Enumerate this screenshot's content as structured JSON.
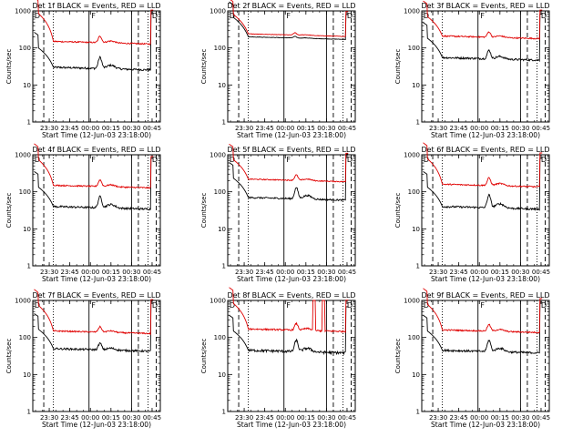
{
  "colors": {
    "events": "#000000",
    "lld": "#e00000"
  },
  "chart_data": [
    {
      "type": "line",
      "title": "Det 1f BLACK = Events, RED = LLD",
      "xlabel": "Start Time (12-Jun-03 23:18:00)",
      "ylabel": "Counts/sec",
      "yscale": "log",
      "ylim": [
        1,
        1000
      ],
      "xlim": [
        "23:18",
        "00:51"
      ],
      "xticks": [
        "23:30",
        "23:45",
        "00:00",
        "00:15",
        "00:30",
        "00:45"
      ],
      "yticks": [
        "1",
        "10",
        "100",
        "1000"
      ],
      "flags": [
        "D",
        "F",
        "D"
      ],
      "markers": [
        {
          "style": "dashed",
          "x": "23:26"
        },
        {
          "style": "dotted",
          "x": "23:33"
        },
        {
          "style": "solid",
          "x": "23:59"
        },
        {
          "style": "solid",
          "x": "00:30"
        },
        {
          "style": "dashed",
          "x": "00:35"
        },
        {
          "style": "dotted",
          "x": "00:42"
        },
        {
          "style": "dashed",
          "x": "00:48"
        }
      ],
      "series": [
        {
          "name": "Events",
          "base": 30,
          "peakAt": "00:07",
          "peak": 2.0,
          "startHigh": 4,
          "endHigh": 30,
          "noise": 0.06
        },
        {
          "name": "LLD",
          "base": 150,
          "peakAt": "00:07",
          "peak": 1.5,
          "startHigh": 7,
          "endHigh": 7,
          "noise": 0.04
        }
      ]
    },
    {
      "type": "line",
      "title": "Det 2f BLACK = Events, RED = LLD",
      "xlabel": "Start Time (12-Jun-03 23:18:00)",
      "ylabel": "Counts/sec",
      "yscale": "log",
      "ylim": [
        1,
        1000
      ],
      "xlim": [
        "23:18",
        "00:51"
      ],
      "xticks": [
        "23:30",
        "23:45",
        "00:00",
        "00:15",
        "00:30",
        "00:45"
      ],
      "yticks": [
        "1",
        "10",
        "100",
        "1000"
      ],
      "flags": [
        "D",
        "F",
        "D"
      ],
      "markers": [
        {
          "style": "dashed",
          "x": "23:26"
        },
        {
          "style": "dotted",
          "x": "23:33"
        },
        {
          "style": "solid",
          "x": "23:59"
        },
        {
          "style": "solid",
          "x": "00:30"
        },
        {
          "style": "dashed",
          "x": "00:35"
        },
        {
          "style": "dotted",
          "x": "00:42"
        },
        {
          "style": "dashed",
          "x": "00:48"
        }
      ],
      "series": [
        {
          "name": "Events",
          "base": 200,
          "peakAt": "00:07",
          "peak": 1.1,
          "startHigh": 4,
          "endHigh": 4,
          "noise": 0.015
        },
        {
          "name": "LLD",
          "base": 240,
          "peakAt": "00:07",
          "peak": 1.15,
          "startHigh": 4,
          "endHigh": 4,
          "noise": 0.015
        }
      ]
    },
    {
      "type": "line",
      "title": "Det 3f BLACK = Events, RED = LLD",
      "xlabel": "Start Time (12-Jun-03 23:18:00)",
      "ylabel": "Counts/sec",
      "yscale": "log",
      "ylim": [
        1,
        1000
      ],
      "xlim": [
        "23:18",
        "00:51"
      ],
      "xticks": [
        "23:30",
        "23:45",
        "00:00",
        "00:15",
        "00:30",
        "00:45"
      ],
      "yticks": [
        "1",
        "10",
        "100",
        "1000"
      ],
      "flags": [
        "D",
        "F",
        "D"
      ],
      "markers": [
        {
          "style": "dashed",
          "x": "23:26"
        },
        {
          "style": "dotted",
          "x": "23:33"
        },
        {
          "style": "solid",
          "x": "23:59"
        },
        {
          "style": "solid",
          "x": "00:30"
        },
        {
          "style": "dashed",
          "x": "00:35"
        },
        {
          "style": "dotted",
          "x": "00:42"
        },
        {
          "style": "dashed",
          "x": "00:48"
        }
      ],
      "series": [
        {
          "name": "Events",
          "base": 55,
          "peakAt": "00:07",
          "peak": 1.7,
          "startHigh": 4,
          "endHigh": 15,
          "noise": 0.06
        },
        {
          "name": "LLD",
          "base": 210,
          "peakAt": "00:07",
          "peak": 1.4,
          "startHigh": 4,
          "endHigh": 5,
          "noise": 0.04
        }
      ]
    },
    {
      "type": "line",
      "title": "Det 4f BLACK = Events, RED = LLD",
      "xlabel": "Start Time (12-Jun-03 23:18:00)",
      "ylabel": "Counts/sec",
      "yscale": "log",
      "ylim": [
        1,
        1000
      ],
      "xlim": [
        "23:18",
        "00:51"
      ],
      "xticks": [
        "23:30",
        "23:45",
        "00:00",
        "00:15",
        "00:30",
        "00:45"
      ],
      "yticks": [
        "1",
        "10",
        "100",
        "1000"
      ],
      "flags": [
        "D",
        "F",
        "D"
      ],
      "markers": [
        {
          "style": "dashed",
          "x": "23:26"
        },
        {
          "style": "dotted",
          "x": "23:33"
        },
        {
          "style": "solid",
          "x": "23:59"
        },
        {
          "style": "solid",
          "x": "00:30"
        },
        {
          "style": "dashed",
          "x": "00:35"
        },
        {
          "style": "dotted",
          "x": "00:42"
        },
        {
          "style": "dashed",
          "x": "00:48"
        }
      ],
      "series": [
        {
          "name": "Events",
          "base": 40,
          "peakAt": "00:07",
          "peak": 2.0,
          "startHigh": 4,
          "endHigh": 20,
          "noise": 0.06
        },
        {
          "name": "LLD",
          "base": 150,
          "peakAt": "00:07",
          "peak": 1.5,
          "startHigh": 6,
          "endHigh": 6,
          "noise": 0.04
        }
      ]
    },
    {
      "type": "line",
      "title": "Det 5f BLACK = Events, RED = LLD",
      "xlabel": "Start Time (12-Jun-03 23:18:00)",
      "ylabel": "Counts/sec",
      "yscale": "log",
      "ylim": [
        1,
        1000
      ],
      "xlim": [
        "23:18",
        "00:51"
      ],
      "xticks": [
        "23:30",
        "23:45",
        "00:00",
        "00:15",
        "00:30",
        "00:45"
      ],
      "yticks": [
        "1",
        "10",
        "100",
        "1000"
      ],
      "flags": [
        "D",
        "F",
        "D"
      ],
      "markers": [
        {
          "style": "dashed",
          "x": "23:26"
        },
        {
          "style": "dotted",
          "x": "23:33"
        },
        {
          "style": "solid",
          "x": "23:59"
        },
        {
          "style": "solid",
          "x": "00:30"
        },
        {
          "style": "dashed",
          "x": "00:35"
        },
        {
          "style": "dotted",
          "x": "00:42"
        },
        {
          "style": "dashed",
          "x": "00:48"
        }
      ],
      "series": [
        {
          "name": "Events",
          "base": 70,
          "peakAt": "00:08",
          "peak": 2.0,
          "startHigh": 4,
          "endHigh": 15,
          "noise": 0.05
        },
        {
          "name": "LLD",
          "base": 220,
          "peakAt": "00:08",
          "peak": 1.4,
          "startHigh": 4,
          "endHigh": 5,
          "noise": 0.03
        }
      ]
    },
    {
      "type": "line",
      "title": "Det 6f BLACK = Events, RED = LLD",
      "xlabel": "Start Time (12-Jun-03 23:18:00)",
      "ylabel": "Counts/sec",
      "yscale": "log",
      "ylim": [
        1,
        1000
      ],
      "xlim": [
        "23:18",
        "00:51"
      ],
      "xticks": [
        "23:30",
        "23:45",
        "00:00",
        "00:15",
        "00:30",
        "00:45"
      ],
      "yticks": [
        "1",
        "10",
        "100",
        "1000"
      ],
      "flags": [
        "D",
        "F",
        "D"
      ],
      "markers": [
        {
          "style": "dashed",
          "x": "23:26"
        },
        {
          "style": "dotted",
          "x": "23:33"
        },
        {
          "style": "solid",
          "x": "23:59"
        },
        {
          "style": "solid",
          "x": "00:30"
        },
        {
          "style": "dashed",
          "x": "00:35"
        },
        {
          "style": "dotted",
          "x": "00:42"
        },
        {
          "style": "dashed",
          "x": "00:48"
        }
      ],
      "series": [
        {
          "name": "Events",
          "base": 40,
          "peakAt": "00:07",
          "peak": 2.2,
          "startHigh": 4,
          "endHigh": 20,
          "noise": 0.06
        },
        {
          "name": "LLD",
          "base": 160,
          "peakAt": "00:07",
          "peak": 1.6,
          "startHigh": 6,
          "endHigh": 7,
          "noise": 0.04
        }
      ]
    },
    {
      "type": "line",
      "title": "Det 7f BLACK = Events, RED = LLD",
      "xlabel": "Start Time (12-Jun-03 23:18:00)",
      "ylabel": "Counts/sec",
      "yscale": "log",
      "ylim": [
        1,
        1000
      ],
      "xlim": [
        "23:18",
        "00:51"
      ],
      "xticks": [
        "23:30",
        "23:45",
        "00:00",
        "00:15",
        "00:30",
        "00:45"
      ],
      "yticks": [
        "1",
        "10",
        "100",
        "1000"
      ],
      "flags": [
        "D",
        "F",
        "D"
      ],
      "markers": [
        {
          "style": "dashed",
          "x": "23:26"
        },
        {
          "style": "dotted",
          "x": "23:33"
        },
        {
          "style": "solid",
          "x": "23:59"
        },
        {
          "style": "solid",
          "x": "00:30"
        },
        {
          "style": "dashed",
          "x": "00:35"
        },
        {
          "style": "dotted",
          "x": "00:42"
        },
        {
          "style": "dashed",
          "x": "00:48"
        }
      ],
      "series": [
        {
          "name": "Events",
          "base": 50,
          "peakAt": "00:07",
          "peak": 1.5,
          "startHigh": 4,
          "endHigh": 20,
          "noise": 0.06
        },
        {
          "name": "LLD",
          "base": 150,
          "peakAt": "00:07",
          "peak": 1.4,
          "startHigh": 6,
          "endHigh": 7,
          "noise": 0.04
        }
      ]
    },
    {
      "type": "line",
      "title": "Det 8f BLACK = Events, RED = LLD",
      "xlabel": "Start Time (12-Jun-03 23:18:00)",
      "ylabel": "Counts/sec",
      "yscale": "log",
      "ylim": [
        1,
        1000
      ],
      "xlim": [
        "23:18",
        "00:51"
      ],
      "xticks": [
        "23:30",
        "23:45",
        "00:00",
        "00:15",
        "00:30",
        "00:45"
      ],
      "yticks": [
        "1",
        "10",
        "100",
        "1000"
      ],
      "flags": [
        "D",
        "F",
        "D"
      ],
      "markers": [
        {
          "style": "dashed",
          "x": "23:26"
        },
        {
          "style": "dotted",
          "x": "23:33"
        },
        {
          "style": "solid",
          "x": "23:59"
        },
        {
          "style": "solid",
          "x": "00:30"
        },
        {
          "style": "dashed",
          "x": "00:35"
        },
        {
          "style": "dotted",
          "x": "00:42"
        },
        {
          "style": "dashed",
          "x": "00:48"
        }
      ],
      "series": [
        {
          "name": "Events",
          "base": 45,
          "peakAt": "00:08",
          "peak": 2.0,
          "startHigh": 4,
          "endHigh": 15,
          "noise": 0.08
        },
        {
          "name": "LLD",
          "base": 170,
          "peakAt": "00:08",
          "peak": 1.5,
          "startHigh": 6,
          "endHigh": 6,
          "noise": 0.05,
          "spikes": [
            [
              "00:20",
              "00:22"
            ],
            [
              "00:27",
              "00:29"
            ]
          ]
        }
      ]
    },
    {
      "type": "line",
      "title": "Det 9f BLACK = Events, RED = LLD",
      "xlabel": "Start Time (12-Jun-03 23:18:00)",
      "ylabel": "Counts/sec",
      "yscale": "log",
      "ylim": [
        1,
        1000
      ],
      "xlim": [
        "23:18",
        "00:51"
      ],
      "xticks": [
        "23:30",
        "23:45",
        "00:00",
        "00:15",
        "00:30",
        "00:45"
      ],
      "yticks": [
        "1",
        "10",
        "100",
        "1000"
      ],
      "flags": [
        "D",
        "F",
        "D"
      ],
      "markers": [
        {
          "style": "dashed",
          "x": "23:26"
        },
        {
          "style": "dotted",
          "x": "23:33"
        },
        {
          "style": "solid",
          "x": "23:59"
        },
        {
          "style": "solid",
          "x": "00:30"
        },
        {
          "style": "dashed",
          "x": "00:35"
        },
        {
          "style": "dotted",
          "x": "00:42"
        },
        {
          "style": "dashed",
          "x": "00:48"
        }
      ],
      "series": [
        {
          "name": "Events",
          "base": 45,
          "peakAt": "00:07",
          "peak": 2.0,
          "startHigh": 4,
          "endHigh": 20,
          "noise": 0.06
        },
        {
          "name": "LLD",
          "base": 160,
          "peakAt": "00:07",
          "peak": 1.5,
          "startHigh": 6,
          "endHigh": 7,
          "noise": 0.04
        }
      ]
    }
  ]
}
